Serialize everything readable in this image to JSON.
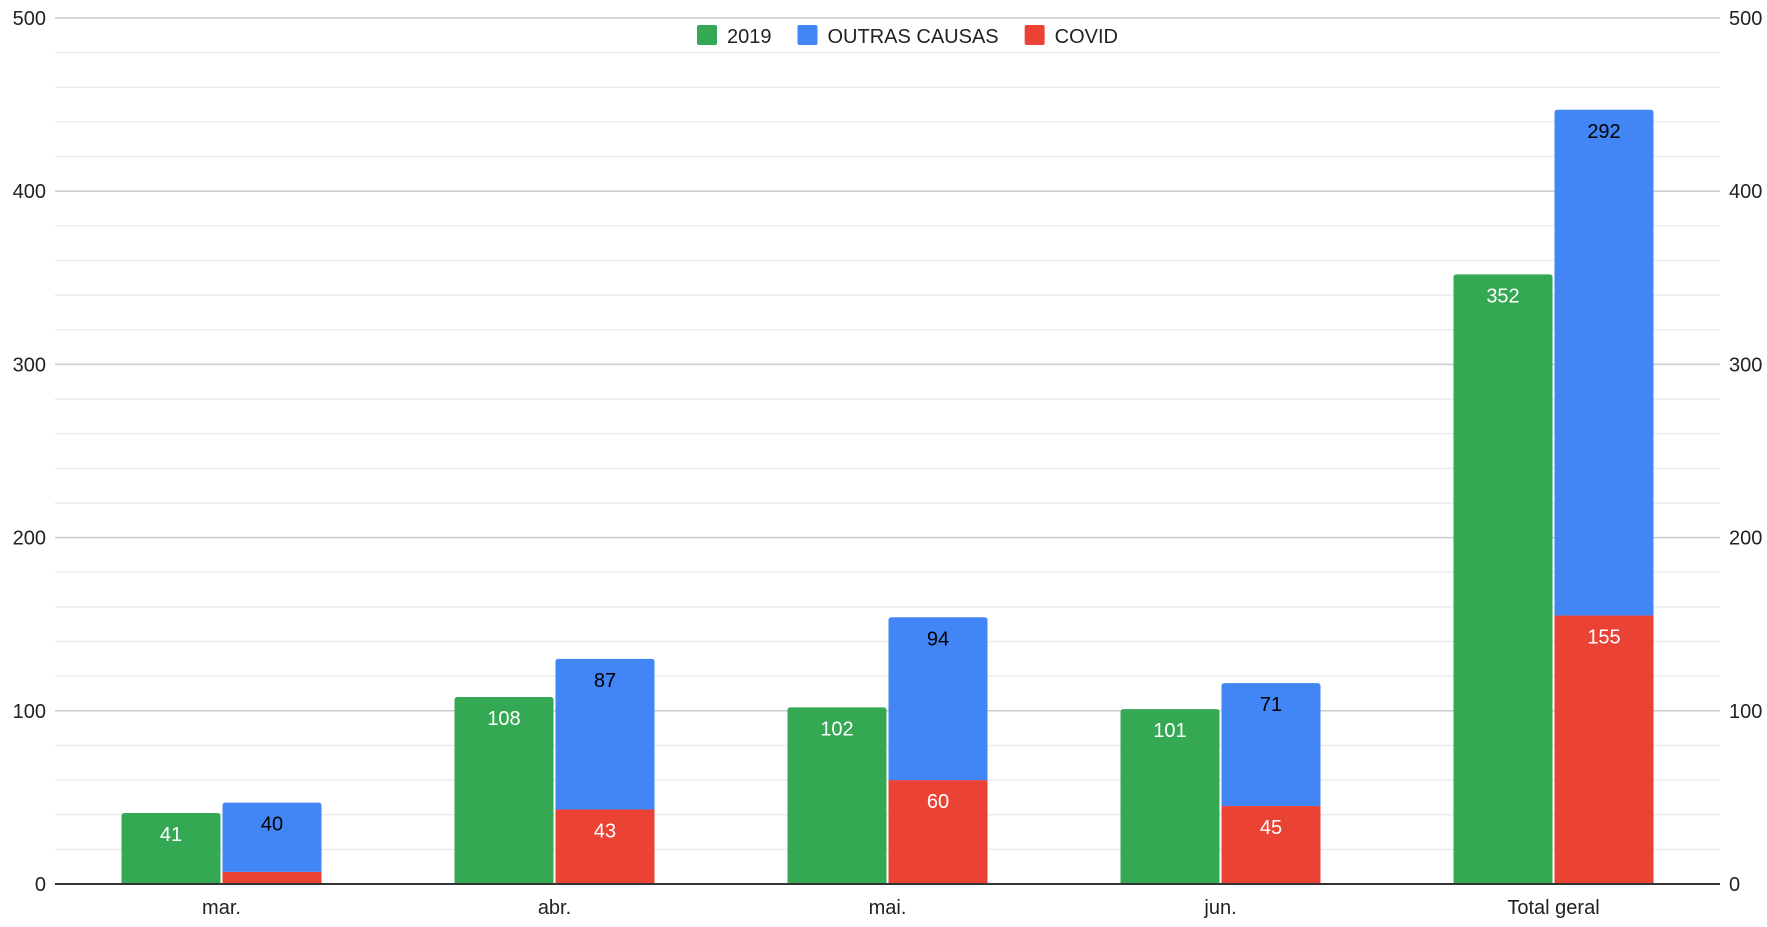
{
  "chart_data": {
    "type": "bar",
    "title": "",
    "xlabel": "",
    "ylabel": "",
    "categories": [
      "mar.",
      "abr.",
      "mai.",
      "jun.",
      "Total geral"
    ],
    "ylim": [
      0,
      500
    ],
    "yticks": [
      0,
      100,
      200,
      300,
      400,
      500
    ],
    "grid": true,
    "minor_gridlines_per_major": 5,
    "secondary_y_axis": true,
    "legend_position": "top-center",
    "series": [
      {
        "name": "2019",
        "stack": "a",
        "color": "#34a853",
        "values": [
          41,
          108,
          102,
          101,
          352
        ],
        "labels": [
          "41",
          "108",
          "102",
          "101",
          "352"
        ],
        "label_color": "#ffffff"
      },
      {
        "name": "COVID",
        "stack": "b",
        "color": "#ea4335",
        "values": [
          7,
          43,
          60,
          45,
          155
        ],
        "labels": [
          "7",
          "43",
          "60",
          "45",
          "155"
        ],
        "label_color": "#ffffff"
      },
      {
        "name": "OUTRAS CAUSAS",
        "stack": "b",
        "color": "#4285f4",
        "values": [
          40,
          87,
          94,
          71,
          292
        ],
        "labels": [
          "40",
          "87",
          "94",
          "71",
          "292"
        ],
        "label_color": "#000000"
      }
    ],
    "legend": [
      {
        "name": "2019",
        "color": "#34a853"
      },
      {
        "name": "OUTRAS CAUSAS",
        "color": "#4285f4"
      },
      {
        "name": "COVID",
        "color": "#ea4335"
      }
    ]
  }
}
